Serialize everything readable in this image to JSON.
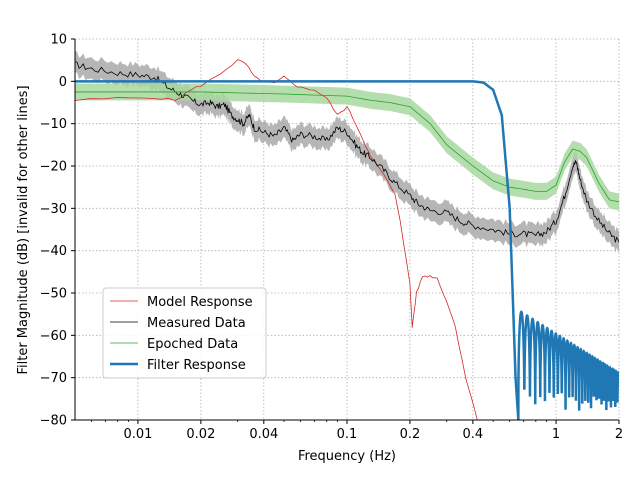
{
  "chart_data": {
    "type": "line",
    "title": "",
    "xlabel": "Frequency (Hz)",
    "ylabel": "Filter Magnitude (dB) [invalid for other lines]",
    "xscale": "log",
    "xlim": [
      0.005,
      2
    ],
    "ylim": [
      -80,
      10
    ],
    "x_ticks": [
      0.01,
      0.02,
      0.04,
      0.1,
      0.2,
      0.4,
      1,
      2
    ],
    "x_tick_labels": [
      "0.01",
      "0.02",
      "0.04",
      "0.1",
      "0.2",
      "0.4",
      "1",
      "2"
    ],
    "y_ticks": [
      10,
      0,
      -10,
      -20,
      -30,
      -40,
      -50,
      -60,
      -70,
      -80
    ],
    "y_tick_labels": [
      "10",
      "0",
      "−10",
      "−20",
      "−30",
      "−40",
      "−50",
      "−60",
      "−70",
      "−80"
    ],
    "grid": true,
    "legend_position": "lower-left",
    "series": [
      {
        "name": "Model Response",
        "color": "#d62728",
        "x": [
          0.005,
          0.008,
          0.012,
          0.015,
          0.018,
          0.021,
          0.025,
          0.03,
          0.033,
          0.036,
          0.04,
          0.045,
          0.05,
          0.055,
          0.06,
          0.07,
          0.08,
          0.09,
          0.1,
          0.11,
          0.12,
          0.13,
          0.15,
          0.17,
          0.18,
          0.2,
          0.205,
          0.215,
          0.23,
          0.25,
          0.27,
          0.3,
          0.33,
          0.37,
          0.42
        ],
        "y": [
          -4.5,
          -4.0,
          -3.8,
          -4.5,
          -2.0,
          -0.5,
          2.0,
          5.0,
          4.0,
          1.0,
          0.0,
          -0.5,
          1.0,
          -0.5,
          -1.5,
          -2.0,
          -4.0,
          -8.0,
          -6.0,
          -10.0,
          -14.0,
          -18.0,
          -22.0,
          -27.0,
          -33.0,
          -48.0,
          -58.0,
          -50.0,
          -46.0,
          -46.0,
          -46.5,
          -52.0,
          -58.0,
          -70.0,
          -80.0
        ]
      },
      {
        "name": "Measured Data",
        "color": "#000000",
        "band_color": "#a9a9a9",
        "band_halfwidth": 2.5,
        "x": [
          0.005,
          0.006,
          0.008,
          0.01,
          0.012,
          0.014,
          0.016,
          0.018,
          0.02,
          0.022,
          0.024,
          0.026,
          0.028,
          0.03,
          0.032,
          0.034,
          0.036,
          0.04,
          0.045,
          0.05,
          0.055,
          0.06,
          0.07,
          0.08,
          0.09,
          0.1,
          0.11,
          0.12,
          0.13,
          0.15,
          0.17,
          0.2,
          0.22,
          0.25,
          0.3,
          0.35,
          0.4,
          0.5,
          0.6,
          0.7,
          0.8,
          0.9,
          1.0,
          1.1,
          1.2,
          1.25,
          1.3,
          1.4,
          1.6,
          1.8,
          2.0
        ],
        "y": [
          4.0,
          3.0,
          2.0,
          1.5,
          1.0,
          -1.5,
          -3.0,
          -4.5,
          -5.5,
          -5.0,
          -6.0,
          -5.5,
          -8.0,
          -9.0,
          -10.0,
          -8.0,
          -11.0,
          -12.0,
          -13.0,
          -11.0,
          -14.0,
          -12.5,
          -13.0,
          -14.0,
          -11.0,
          -12.0,
          -15.0,
          -17.0,
          -18.0,
          -21.0,
          -24.0,
          -27.0,
          -29.0,
          -30.5,
          -31.0,
          -33.0,
          -34.0,
          -35.0,
          -36.0,
          -36.0,
          -36.5,
          -35.5,
          -33.0,
          -27.0,
          -20.0,
          -19.0,
          -23.0,
          -28.0,
          -33.0,
          -36.0,
          -38.0
        ]
      },
      {
        "name": "Epoched Data",
        "color": "#2ca02c",
        "band_color": "#a8d8a0",
        "band_halfwidth": 2.0,
        "x": [
          0.005,
          0.01,
          0.02,
          0.05,
          0.1,
          0.13,
          0.16,
          0.2,
          0.25,
          0.3,
          0.4,
          0.5,
          0.6,
          0.7,
          0.8,
          0.9,
          1.0,
          1.1,
          1.2,
          1.3,
          1.4,
          1.6,
          1.8,
          2.0
        ],
        "y": [
          -2.5,
          -2.5,
          -2.5,
          -3.0,
          -3.5,
          -4.5,
          -5.0,
          -6.0,
          -10.0,
          -15.0,
          -20.0,
          -23.5,
          -25.0,
          -25.5,
          -26.0,
          -26.0,
          -24.5,
          -19.0,
          -16.0,
          -16.5,
          -18.0,
          -24.0,
          -28.0,
          -28.5
        ]
      },
      {
        "name": "Filter Response",
        "color": "#1f77b4",
        "x": [
          0.005,
          0.05,
          0.1,
          0.2,
          0.3,
          0.4,
          0.45,
          0.5,
          0.55,
          0.6,
          0.62,
          0.64,
          0.66
        ],
        "y": [
          0,
          0,
          0,
          0,
          0,
          0,
          -0.3,
          -2.0,
          -8.0,
          -30.0,
          -50.0,
          -70.0,
          -80.0
        ],
        "stopband_ripple": {
          "x_start": 0.66,
          "x_end": 2.0,
          "peak_start_db": -54,
          "peak_end_db": -69,
          "floor_db": -80
        }
      }
    ],
    "legend": [
      "Model Response",
      "Measured Data",
      "Epoched Data",
      "Filter Response"
    ]
  }
}
